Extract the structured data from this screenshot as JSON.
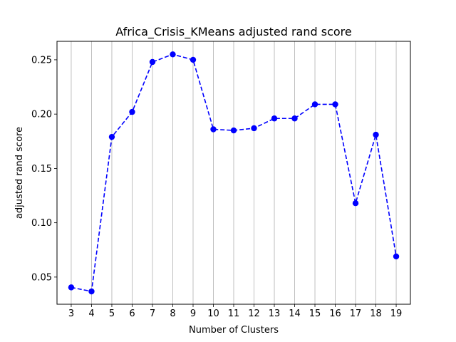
{
  "chart_data": {
    "type": "line",
    "title": "Africa_Crisis_KMeans adjusted rand score",
    "xlabel": "Number of Clusters",
    "ylabel": "adjusted rand score",
    "x": [
      3,
      4,
      5,
      6,
      7,
      8,
      9,
      10,
      11,
      12,
      13,
      14,
      15,
      16,
      17,
      18,
      19
    ],
    "series": [
      {
        "values": [
          0.0405,
          0.0368,
          0.179,
          0.202,
          0.248,
          0.255,
          0.25,
          0.186,
          0.185,
          0.187,
          0.196,
          0.196,
          0.209,
          0.209,
          0.118,
          0.181,
          0.069
        ],
        "color": "#0000ff",
        "line_style": "dashed",
        "marker": "circle"
      }
    ],
    "xlim": [
      2.3,
      19.7
    ],
    "ylim": [
      0.025,
      0.267
    ],
    "xticks": [
      "3",
      "4",
      "5",
      "6",
      "7",
      "8",
      "9",
      "10",
      "11",
      "12",
      "13",
      "14",
      "15",
      "16",
      "17",
      "18",
      "19"
    ],
    "yticks": [
      "0.05",
      "0.10",
      "0.15",
      "0.20",
      "0.25"
    ],
    "ytick_values": [
      0.05,
      0.1,
      0.15,
      0.2,
      0.25
    ],
    "grid": "vertical"
  }
}
